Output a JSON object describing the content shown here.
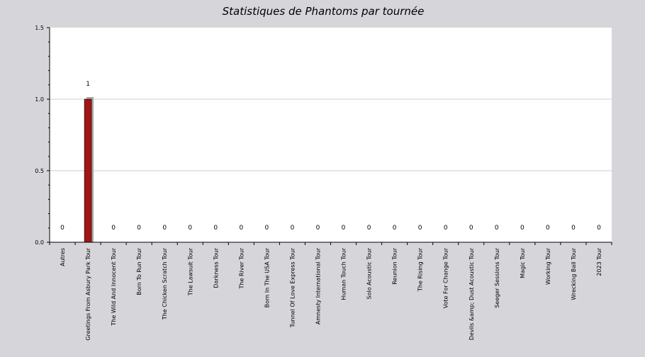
{
  "chart_data": {
    "type": "bar",
    "title": "Statistiques de Phantoms par tournée",
    "xlabel": "",
    "ylabel": "",
    "ylim": [
      0,
      1.5
    ],
    "yticks": [
      "0.0",
      "0.5",
      "1.0",
      "1.5"
    ],
    "grid": true,
    "legend": "none",
    "categories": [
      "Autres",
      "Greetings From Asbury Park Tour",
      "The Wild And Innocent Tour",
      "Born To Run Tour",
      "The Chicken Scratch Tour",
      "The Lawsuit Tour",
      "Darkness Tour",
      "The River Tour",
      "Born In The USA Tour",
      "Tunnel Of Love Express Tour",
      "Amnesty International Tour",
      "Human Touch Tour",
      "Solo Acoustic Tour",
      "Reunion Tour",
      "The Rising Tour",
      "Vote For Change Tour",
      "Devils &amp; Dust Acoustic Tour",
      "Seeger Sessions Tour",
      "Magic Tour",
      "Working Tour",
      "Wrecking Ball Tour",
      "2023 Tour"
    ],
    "values": [
      0,
      1,
      0,
      0,
      0,
      0,
      0,
      0,
      0,
      0,
      0,
      0,
      0,
      0,
      0,
      0,
      0,
      0,
      0,
      0,
      0,
      0
    ],
    "data_labels": [
      "0",
      "1",
      "0",
      "0",
      "0",
      "0",
      "0",
      "0",
      "0",
      "0",
      "0",
      "0",
      "0",
      "0",
      "0",
      "0",
      "0",
      "0",
      "0",
      "0",
      "0",
      "0"
    ]
  },
  "colors": {
    "background": "#d6d5da",
    "plot_background": "#ffffff",
    "bar": "#a31515",
    "bar_shadow": "#a9a9a9",
    "grid": "#cccccc",
    "axis": "#000000",
    "text": "#000000"
  }
}
